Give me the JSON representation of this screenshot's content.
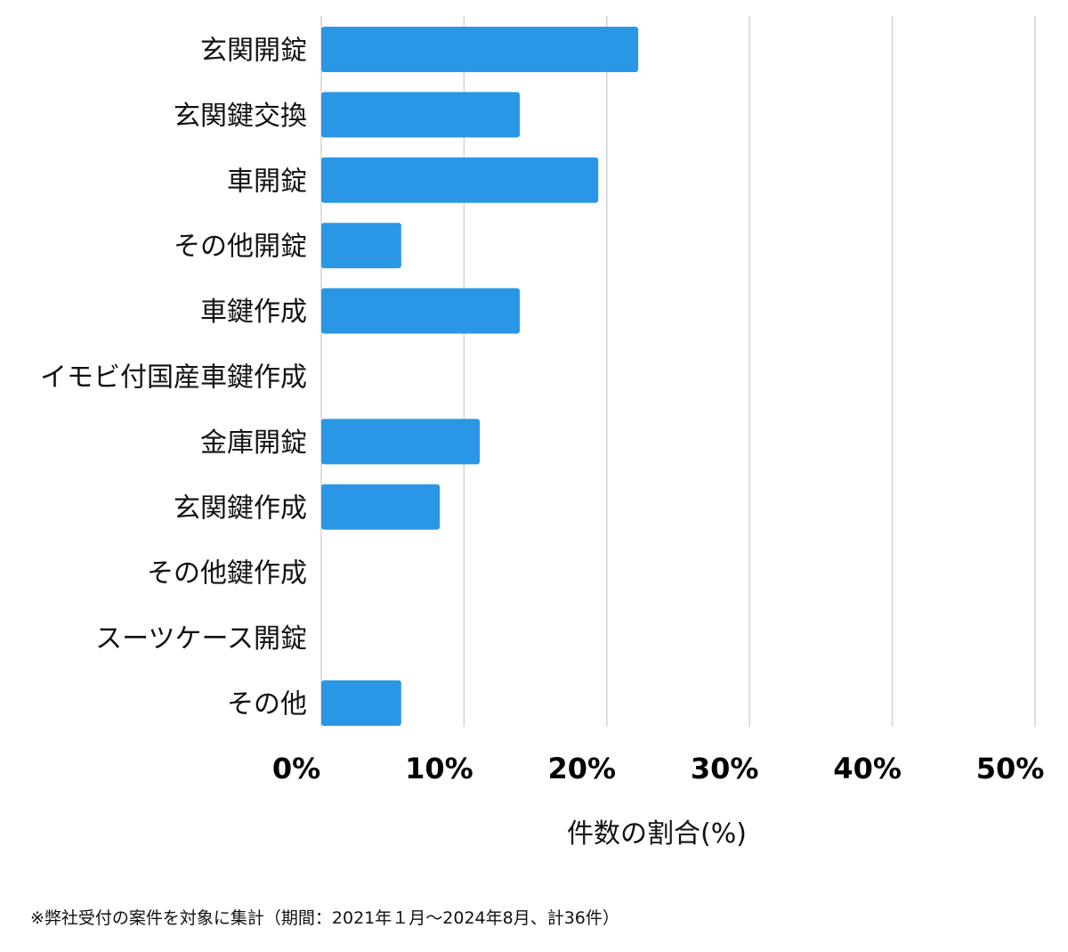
{
  "chart_data": {
    "type": "bar",
    "orientation": "horizontal",
    "categories": [
      "玄関開錠",
      "玄関鍵交換",
      "車開錠",
      "その他開錠",
      "車鍵作成",
      "イモビ付国産車鍵作成",
      "金庫開錠",
      "玄関鍵作成",
      "その他鍵作成",
      "スーツケース開錠",
      "その他"
    ],
    "values": [
      22.2,
      13.9,
      19.4,
      5.6,
      13.9,
      0,
      11.1,
      8.3,
      0,
      0,
      5.6
    ],
    "xlabel": "件数の割合(%)",
    "ylabel": "",
    "xlim": [
      0,
      50
    ],
    "ticks": [
      "0%",
      "10%",
      "20%",
      "30%",
      "40%",
      "50%"
    ],
    "grid": "vertical",
    "bar_color": "#2a96e6",
    "grid_color": "#d3d3d3"
  },
  "footnote": "※弊社受付の案件を対象に集計（期間：2021年１月～2024年8月、計36件）"
}
